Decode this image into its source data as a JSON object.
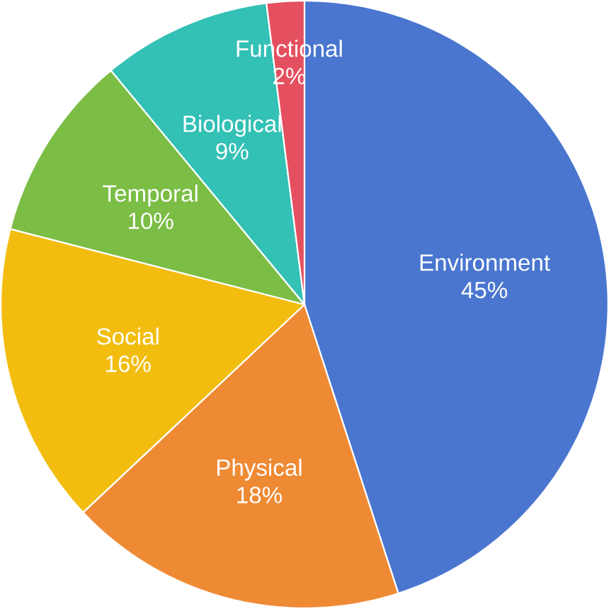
{
  "chart_data": {
    "type": "pie",
    "categories": [
      "Environment",
      "Physical",
      "Social",
      "Temporal",
      "Biological",
      "Functional"
    ],
    "values": [
      45,
      18,
      16,
      10,
      9,
      2
    ],
    "value_labels": [
      "45%",
      "18%",
      "16%",
      "10%",
      "9%",
      "2%"
    ],
    "colors": [
      "#4a76cf",
      "#ef8a34",
      "#f2bd0f",
      "#7bbd45",
      "#33c0b5",
      "#e4505f"
    ]
  }
}
